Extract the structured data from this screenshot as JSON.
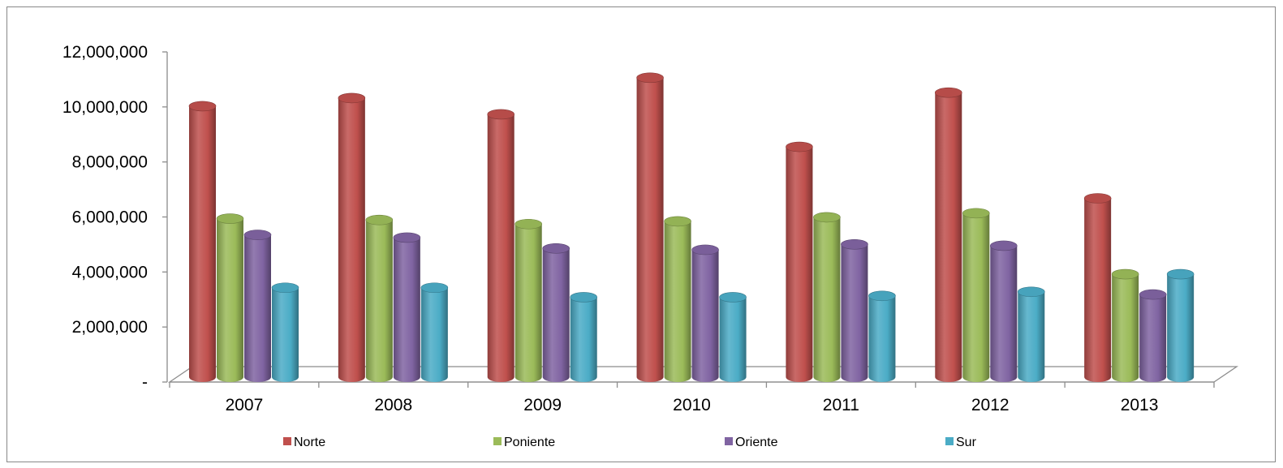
{
  "chart_data": {
    "type": "bar",
    "variant": "3d-cylinder",
    "title": "",
    "xlabel": "",
    "ylabel": "",
    "categories": [
      "2007",
      "2008",
      "2009",
      "2010",
      "2011",
      "2012",
      "2013"
    ],
    "ylim": [
      0,
      12000000
    ],
    "y_tick_values": [
      0,
      2000000,
      4000000,
      6000000,
      8000000,
      10000000,
      12000000
    ],
    "y_tick_labels": [
      "-",
      "2,000,000",
      "4,000,000",
      "6,000,000",
      "8,000,000",
      "10,000,000",
      "12,000,000"
    ],
    "grid": false,
    "legend_position": "bottom",
    "series": [
      {
        "name": "Norte",
        "color": "#C0504D",
        "values": [
          10000000,
          10300000,
          9700000,
          11050000,
          8500000,
          10500000,
          6600000
        ]
      },
      {
        "name": "Poniente",
        "color": "#9BBB59",
        "values": [
          5850000,
          5800000,
          5650000,
          5750000,
          5900000,
          6050000,
          3800000
        ]
      },
      {
        "name": "Oriente",
        "color": "#8064A2",
        "values": [
          5250000,
          5150000,
          4750000,
          4700000,
          4900000,
          4850000,
          3050000
        ]
      },
      {
        "name": "Sur",
        "color": "#4BACC6",
        "values": [
          3300000,
          3300000,
          2950000,
          2950000,
          3000000,
          3150000,
          3800000
        ]
      }
    ]
  }
}
